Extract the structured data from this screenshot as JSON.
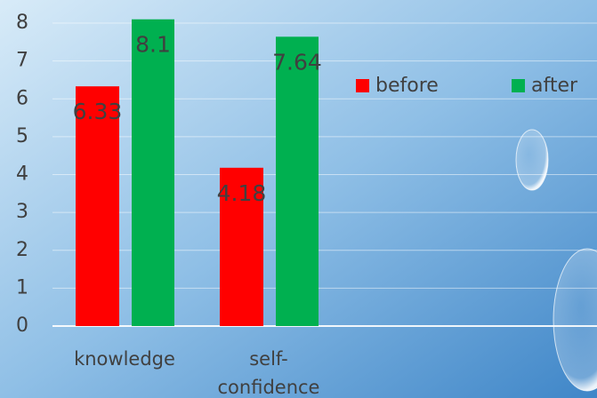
{
  "chart_data": {
    "type": "bar",
    "categories": [
      "knowledge",
      "self-confidence"
    ],
    "series": [
      {
        "name": "before",
        "color": "#ff0000",
        "values": [
          6.33,
          4.18
        ]
      },
      {
        "name": "after",
        "color": "#00b050",
        "values": [
          8.1,
          7.64
        ]
      }
    ],
    "ylim": [
      0,
      8
    ],
    "yticks": [
      0,
      1,
      2,
      3,
      4,
      5,
      6,
      7,
      8
    ],
    "grid": true,
    "legend": "top-right"
  }
}
